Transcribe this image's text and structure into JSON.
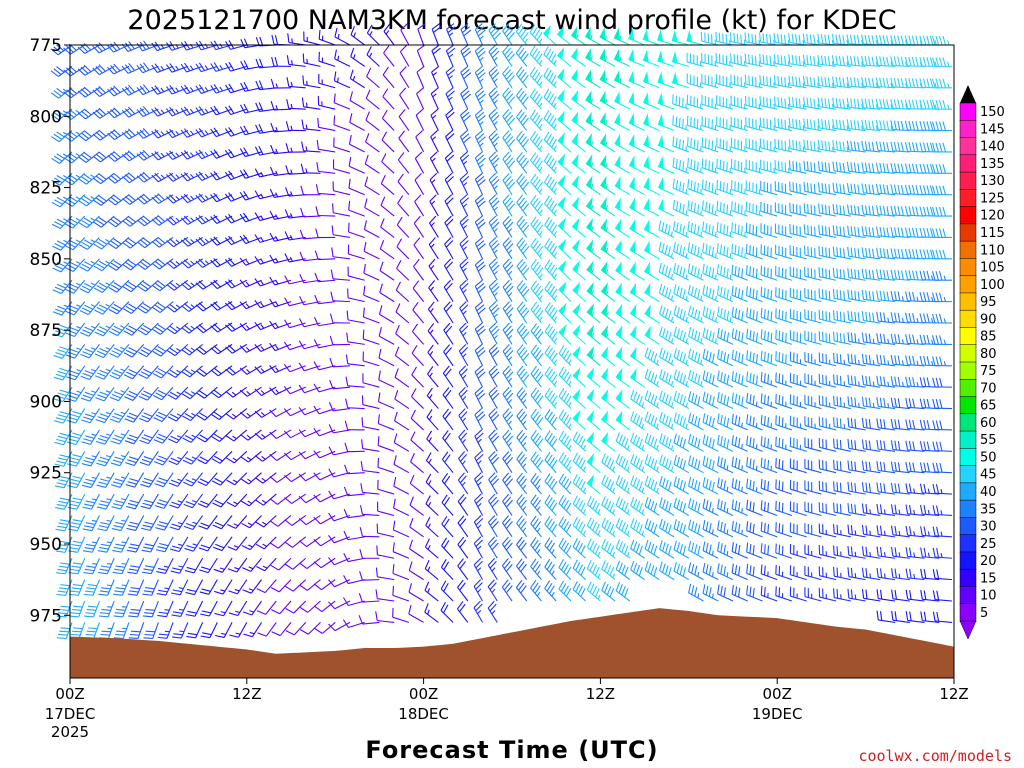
{
  "chart_data": {
    "type": "wind-barb-time-height",
    "title": "2025121700 NAM3KM forecast wind profile (kt) for KDEC",
    "xlabel": "Forecast Time (UTC)",
    "credit": "coolwx.com/models",
    "y_axis": {
      "scale": "pressure (mb), inverted",
      "range": [
        775,
        997
      ],
      "ticks": [
        "775",
        "800",
        "825",
        "850",
        "875",
        "900",
        "925",
        "950",
        "975"
      ],
      "tick_values": [
        775,
        800,
        825,
        850,
        875,
        900,
        925,
        950,
        975
      ]
    },
    "x_axis": {
      "range_hours": [
        0,
        60
      ],
      "ticks": [
        {
          "hour": 0,
          "label": "00Z",
          "sub": [
            "17DEC",
            "2025"
          ]
        },
        {
          "hour": 12,
          "label": "12Z",
          "sub": []
        },
        {
          "hour": 24,
          "label": "00Z",
          "sub": [
            "18DEC"
          ]
        },
        {
          "hour": 36,
          "label": "12Z",
          "sub": []
        },
        {
          "hour": 48,
          "label": "00Z",
          "sub": [
            "19DEC"
          ]
        },
        {
          "hour": 60,
          "label": "12Z",
          "sub": []
        }
      ]
    },
    "colorbar": {
      "labels": [
        "150",
        "145",
        "140",
        "135",
        "130",
        "125",
        "120",
        "115",
        "110",
        "105",
        "100",
        "95",
        "90",
        "85",
        "80",
        "75",
        "70",
        "65",
        "60",
        "55",
        "50",
        "45",
        "40",
        "35",
        "30",
        "25",
        "20",
        "15",
        "10",
        "5"
      ],
      "colors": [
        "#ff00ff",
        "#ff22cc",
        "#ff3399",
        "#ff1e78",
        "#ff1e50",
        "#ff1e28",
        "#ff0000",
        "#e83a00",
        "#f07000",
        "#ff8c00",
        "#ffa000",
        "#ffbe00",
        "#ffdc00",
        "#ffff00",
        "#d2ff00",
        "#a0ff00",
        "#50f000",
        "#00e600",
        "#00e678",
        "#00f0c8",
        "#00ffe6",
        "#28d2ff",
        "#1eaaff",
        "#1e82ff",
        "#1e5aff",
        "#1e32ff",
        "#1414ff",
        "#3200ff",
        "#6400ff",
        "#8c00ff"
      ]
    },
    "terrain_color": "#a0522d",
    "surface_pressure": [
      {
        "h": 0,
        "p": 982.5
      },
      {
        "h": 3,
        "p": 983
      },
      {
        "h": 6,
        "p": 984
      },
      {
        "h": 9,
        "p": 985.5
      },
      {
        "h": 12,
        "p": 987
      },
      {
        "h": 14,
        "p": 988.5
      },
      {
        "h": 16,
        "p": 988
      },
      {
        "h": 18,
        "p": 987.5
      },
      {
        "h": 20,
        "p": 986.5
      },
      {
        "h": 22,
        "p": 986.5
      },
      {
        "h": 24,
        "p": 986
      },
      {
        "h": 26,
        "p": 985
      },
      {
        "h": 28,
        "p": 983
      },
      {
        "h": 30,
        "p": 981
      },
      {
        "h": 32,
        "p": 979
      },
      {
        "h": 34,
        "p": 977
      },
      {
        "h": 36,
        "p": 975.5
      },
      {
        "h": 38,
        "p": 974
      },
      {
        "h": 40,
        "p": 972.5
      },
      {
        "h": 42,
        "p": 973.5
      },
      {
        "h": 44,
        "p": 975
      },
      {
        "h": 46,
        "p": 975.5
      },
      {
        "h": 48,
        "p": 976
      },
      {
        "h": 50,
        "p": 977.5
      },
      {
        "h": 52,
        "p": 979
      },
      {
        "h": 54,
        "p": 980
      },
      {
        "h": 56,
        "p": 982
      },
      {
        "h": 58,
        "p": 984
      },
      {
        "h": 60,
        "p": 986
      }
    ],
    "wind_field_keyframes": [
      {
        "h": 0,
        "low": {
          "speed": 42,
          "dir": 200
        },
        "mid": {
          "speed": 38,
          "dir": 215
        },
        "high": {
          "speed": 32,
          "dir": 235
        }
      },
      {
        "h": 6,
        "low": {
          "speed": 30,
          "dir": 200
        },
        "mid": {
          "speed": 30,
          "dir": 225
        },
        "high": {
          "speed": 28,
          "dir": 250
        }
      },
      {
        "h": 12,
        "low": {
          "speed": 14,
          "dir": 210
        },
        "mid": {
          "speed": 18,
          "dir": 240
        },
        "high": {
          "speed": 22,
          "dir": 255
        }
      },
      {
        "h": 18,
        "low": {
          "speed": 8,
          "dir": 230
        },
        "mid": {
          "speed": 8,
          "dir": 260
        },
        "high": {
          "speed": 14,
          "dir": 290
        }
      },
      {
        "h": 24,
        "low": {
          "speed": 12,
          "dir": 300
        },
        "mid": {
          "speed": 10,
          "dir": 320
        },
        "high": {
          "speed": 12,
          "dir": 340
        }
      },
      {
        "h": 28,
        "low": {
          "speed": 24,
          "dir": 330
        },
        "mid": {
          "speed": 30,
          "dir": 335
        },
        "high": {
          "speed": 35,
          "dir": 335
        }
      },
      {
        "h": 36,
        "low": {
          "speed": 42,
          "dir": 310
        },
        "mid": {
          "speed": 55,
          "dir": 310
        },
        "high": {
          "speed": 55,
          "dir": 300
        }
      },
      {
        "h": 42,
        "low": {
          "speed": 38,
          "dir": 300
        },
        "mid": {
          "speed": 45,
          "dir": 300
        },
        "high": {
          "speed": 48,
          "dir": 285
        }
      },
      {
        "h": 48,
        "low": {
          "speed": 25,
          "dir": 290
        },
        "mid": {
          "speed": 40,
          "dir": 290
        },
        "high": {
          "speed": 45,
          "dir": 280
        }
      },
      {
        "h": 54,
        "low": {
          "speed": 22,
          "dir": 280
        },
        "mid": {
          "speed": 38,
          "dir": 280
        },
        "high": {
          "speed": 45,
          "dir": 275
        }
      },
      {
        "h": 60,
        "low": {
          "speed": 20,
          "dir": 275
        },
        "mid": {
          "speed": 35,
          "dir": 270
        },
        "high": {
          "speed": 45,
          "dir": 270
        }
      }
    ]
  }
}
